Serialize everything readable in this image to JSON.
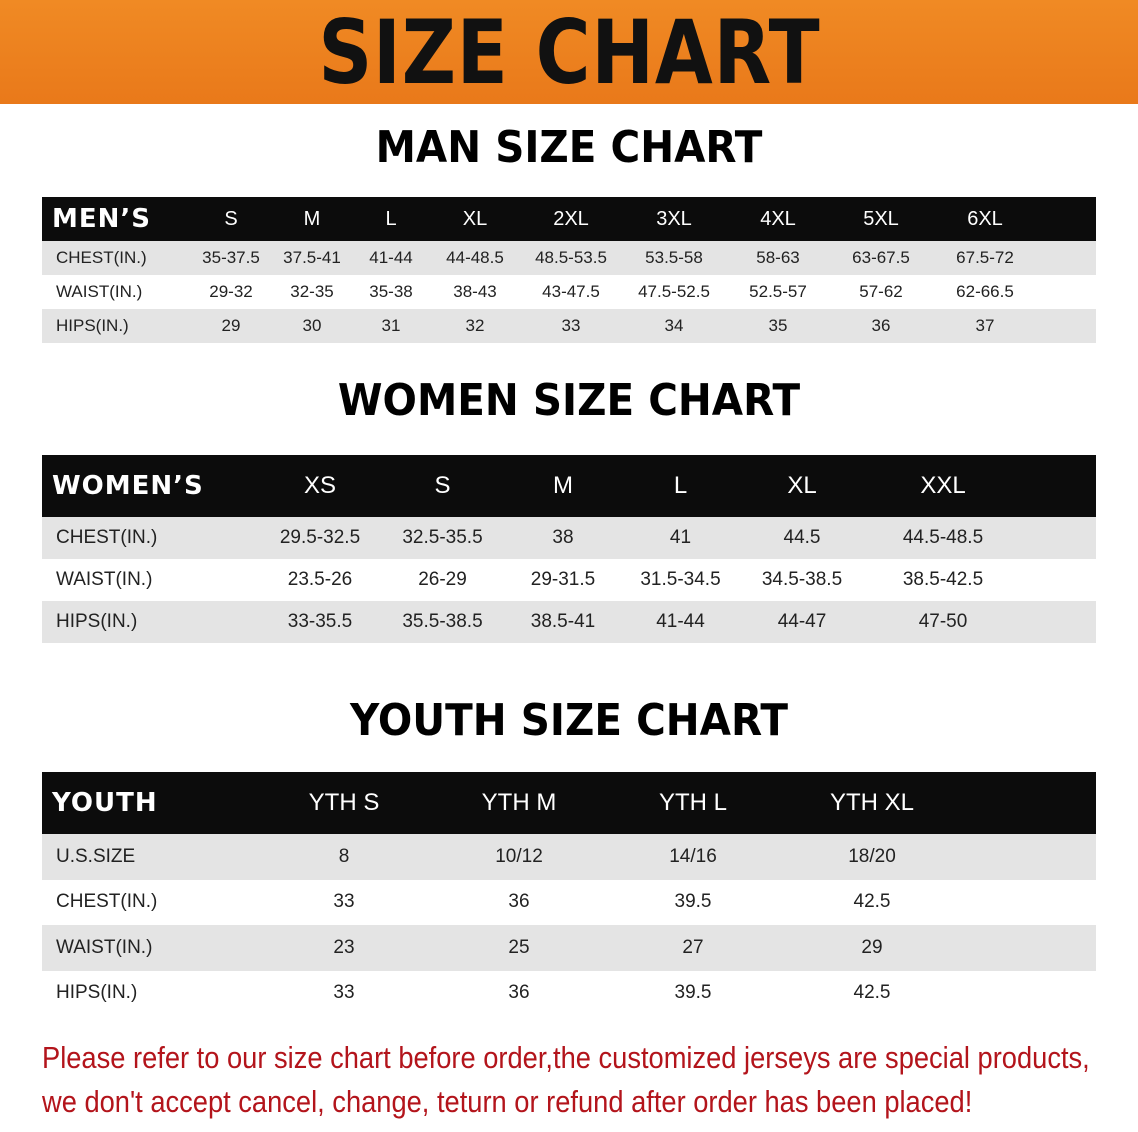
{
  "banner_title": "SIZE CHART",
  "men": {
    "title": "MAN SIZE CHART",
    "header": [
      "MEN’S",
      "S",
      "M",
      "L",
      "XL",
      "2XL",
      "3XL",
      "4XL",
      "5XL",
      "6XL"
    ],
    "rows": [
      [
        "CHEST(IN.)",
        "35-37.5",
        "37.5-41",
        "41-44",
        "44-48.5",
        "48.5-53.5",
        "53.5-58",
        "58-63",
        "63-67.5",
        "67.5-72"
      ],
      [
        "WAIST(IN.)",
        "29-32",
        "32-35",
        "35-38",
        "38-43",
        "43-47.5",
        "47.5-52.5",
        "52.5-57",
        "57-62",
        "62-66.5"
      ],
      [
        "HIPS(IN.)",
        "29",
        "30",
        "31",
        "32",
        "33",
        "34",
        "35",
        "36",
        "37"
      ]
    ]
  },
  "women": {
    "title": "WOMEN SIZE CHART",
    "header": [
      "WOMEN’S",
      "XS",
      "S",
      "M",
      "L",
      "XL",
      "XXL"
    ],
    "rows": [
      [
        "CHEST(IN.)",
        "29.5-32.5",
        "32.5-35.5",
        "38",
        "41",
        "44.5",
        "44.5-48.5"
      ],
      [
        "WAIST(IN.)",
        "23.5-26",
        "26-29",
        "29-31.5",
        "31.5-34.5",
        "34.5-38.5",
        "38.5-42.5"
      ],
      [
        "HIPS(IN.)",
        "33-35.5",
        "35.5-38.5",
        "38.5-41",
        "41-44",
        "44-47",
        "47-50"
      ]
    ]
  },
  "youth": {
    "title": "YOUTH SIZE CHART",
    "header": [
      "YOUTH",
      "YTH S",
      "YTH M",
      "YTH L",
      "YTH XL"
    ],
    "rows": [
      [
        "U.S.SIZE",
        "8",
        "10/12",
        "14/16",
        "18/20"
      ],
      [
        "CHEST(IN.)",
        "33",
        "36",
        "39.5",
        "42.5"
      ],
      [
        "WAIST(IN.)",
        "23",
        "25",
        "27",
        "29"
      ],
      [
        "HIPS(IN.)",
        "33",
        "36",
        "39.5",
        "42.5"
      ]
    ]
  },
  "notice": [
    "Please refer to our size chart before order,the customized jerseys are special products,",
    "we don't accept cancel, change, teturn or refund after order has been placed!"
  ],
  "colors": {
    "banner": "#ee8420",
    "header_row": "#0c0c0c",
    "alt_row": "#e4e4e4",
    "notice_text": "#b3141b"
  }
}
